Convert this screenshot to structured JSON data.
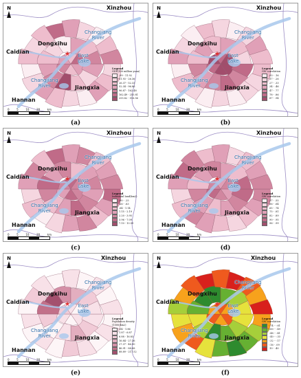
{
  "places": {
    "xinzhou": "Xinzhou",
    "xinzhou_alt": "Xinzhou",
    "caidian": "Caidian",
    "dongxihu": "Dongxihu",
    "hannan": "Hannan",
    "jiangxia": "Jiangxia",
    "changjiang_river": "Changjiang",
    "river": "River",
    "east": "East",
    "lake": "Lake",
    "north": "N"
  },
  "scale": {
    "ticks": [
      "0",
      "5",
      "10",
      "20"
    ],
    "unit": "km"
  },
  "panels": [
    {
      "label": "(a)",
      "legend_title": "Legend",
      "legend_subtitle": "GDP(100 million yuan)",
      "classes": [
        ".09 - 11.92",
        "11.93 - 26.36",
        "26.37 - 52.33",
        "52.34 - 96.86",
        "96.87 - 162.48",
        "162.49 - 255.81",
        "255.82 - 516.56"
      ],
      "colors": [
        "#fbeef2",
        "#f5d6e0",
        "#eebdcd",
        "#e0a0b7",
        "#d1869f",
        "#c06b88",
        "#a24d6c"
      ],
      "fills": [
        3,
        2,
        4,
        3,
        2,
        5,
        3,
        1,
        2,
        6,
        4,
        3,
        2,
        1,
        0,
        3,
        2,
        4,
        1,
        2,
        3,
        0,
        1,
        2,
        3,
        1,
        0,
        2,
        1,
        2,
        5,
        3,
        1,
        0,
        2,
        4
      ]
    },
    {
      "label": "(b)",
      "legend_title": "Legend",
      "legend_subtitle": "GW correlation",
      "classes": [
        ".03 - .16",
        ".17 - .26",
        ".27 - .33",
        ".34 - .46",
        ".47 - .77",
        ".78 - .86",
        ".87 - .94"
      ],
      "colors": [
        "#fbeef2",
        "#f5d6e0",
        "#eebdcd",
        "#e0a0b7",
        "#d1869f",
        "#c06b88",
        "#a24d6c"
      ],
      "fills": [
        6,
        6,
        5,
        6,
        5,
        6,
        5,
        4,
        5,
        4,
        3,
        4,
        2,
        3,
        2,
        3,
        2,
        1,
        2,
        1,
        1,
        0,
        1,
        0,
        1,
        2,
        0,
        3,
        1,
        0,
        2,
        1,
        0,
        1,
        3,
        2
      ]
    },
    {
      "label": "(c)",
      "legend_title": "Legend",
      "legend_subtitle": "Industrial land(km2)",
      "classes": [
        ".00 - .25",
        ".26 - .63",
        ".64 - 1.14",
        "1.15 - 2.19",
        "2.20 - 3.95",
        "3.96 - 7.09",
        "7.10 - 13.59"
      ],
      "colors": [
        "#fbeef2",
        "#f5d6e0",
        "#eebdcd",
        "#e0a0b7",
        "#d1869f",
        "#c06b88",
        "#a24d6c"
      ],
      "fills": [
        4,
        5,
        3,
        4,
        5,
        4,
        3,
        4,
        5,
        3,
        2,
        4,
        5,
        3,
        4,
        2,
        3,
        4,
        5,
        3,
        2,
        4,
        3,
        1,
        0,
        2,
        1,
        3,
        4,
        2,
        5,
        3,
        4,
        2,
        3,
        4
      ]
    },
    {
      "label": "(d)",
      "legend_title": "Legend",
      "legend_subtitle": "GW correlation",
      "classes": [
        ".37 - .55",
        ".56 - .64",
        ".65 - .74",
        ".75 - .81",
        ".82 - .89",
        ".90 - .95",
        ".96 - .99"
      ],
      "colors": [
        "#fbeef2",
        "#f5d6e0",
        "#eebdcd",
        "#e0a0b7",
        "#d1869f",
        "#c06b88",
        "#a24d6c"
      ],
      "fills": [
        3,
        4,
        5,
        4,
        3,
        4,
        5,
        4,
        3,
        2,
        3,
        4,
        2,
        3,
        4,
        3,
        2,
        5,
        4,
        3,
        2,
        1,
        2,
        3,
        4,
        2,
        1,
        3,
        5,
        4,
        2,
        3,
        1,
        2,
        3,
        4
      ]
    },
    {
      "label": "(e)",
      "legend_title": "Legend",
      "legend_subtitle": "Population density",
      "legend_subtitle2": "(1000/km2)",
      "classes": [
        ".04 - 1.86",
        "1.87 - 6.87",
        "6.88 - 16.83",
        "16.84 - 27.36",
        "27.37 - 46.90",
        "46.91 - 88.88",
        "88.89 - 217.52"
      ],
      "colors": [
        "#fdf5f7",
        "#f8e1e8",
        "#f1cbd7",
        "#e3aebf",
        "#d48fa6",
        "#c27089",
        "#a4506e"
      ],
      "fills": [
        1,
        0,
        1,
        2,
        1,
        0,
        1,
        2,
        3,
        1,
        0,
        2,
        5,
        6,
        4,
        3,
        2,
        1,
        0,
        1,
        0,
        1,
        2,
        0,
        1,
        0,
        1,
        0,
        2,
        1,
        0,
        1,
        0,
        1,
        0,
        1
      ]
    },
    {
      "label": "(f)",
      "legend_title": "Legend",
      "legend_subtitle": "GW correlation",
      "classes": [
        "-.74 - -.61",
        "-.60 - -.49",
        "-.48 - -.41",
        "-.40 - -.33",
        "-.32 - -.17",
        "-.16 - .09",
        ".10 - .40"
      ],
      "colors": [
        "#2e8b2e",
        "#66b032",
        "#a6cf3a",
        "#e6e23c",
        "#f7a21c",
        "#ef5a1e",
        "#d8201c"
      ],
      "fills": [
        5,
        4,
        5,
        4,
        5,
        4,
        3,
        2,
        1,
        0,
        2,
        3,
        1,
        0,
        0,
        1,
        2,
        3,
        4,
        2,
        1,
        0,
        1,
        3,
        5,
        4,
        3,
        2,
        4,
        5,
        6,
        5,
        6,
        5,
        4,
        6
      ]
    }
  ]
}
